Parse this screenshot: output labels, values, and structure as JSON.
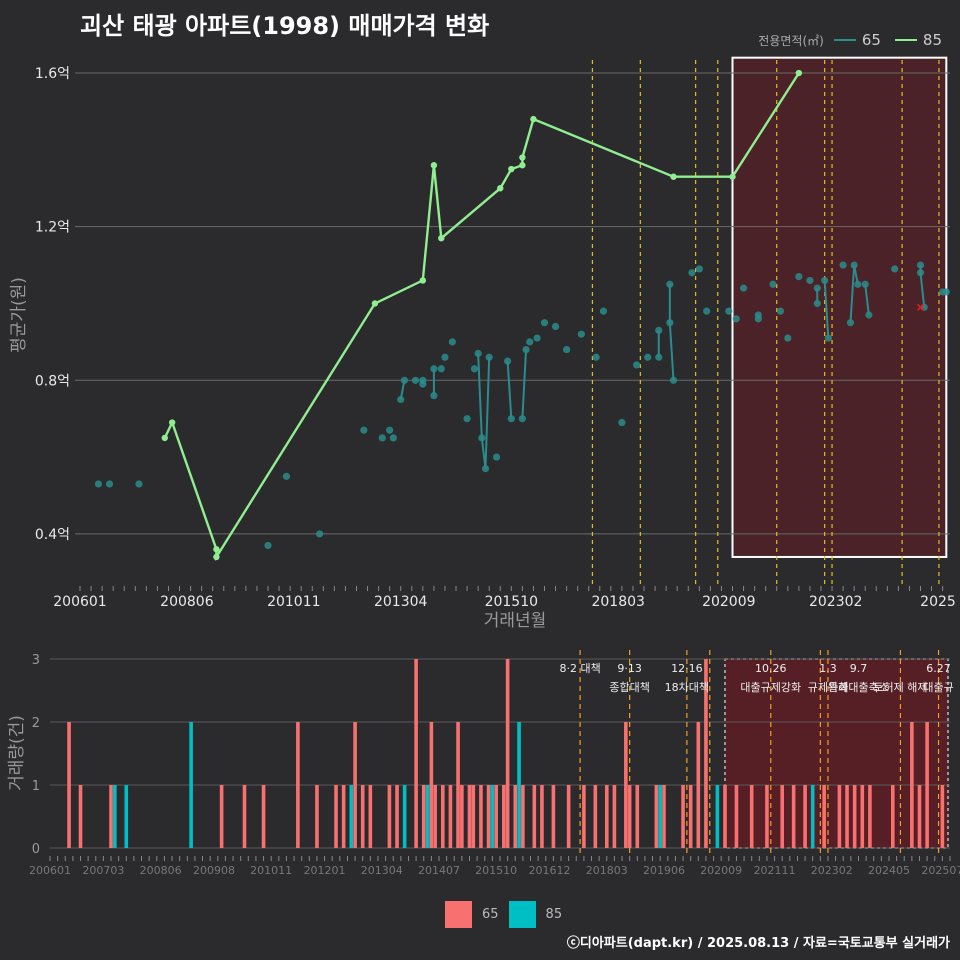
{
  "title": "괴산 태광 아파트(1998) 매매가격 변화",
  "credit": "ⓒ디아파트(dapt.kr) / 2025.08.13 / 자료=국토교통부 실거래가",
  "colors": {
    "line85": "#90ee90",
    "point65": "#2a8c8c",
    "bar65": "#f87070",
    "bar85": "#00bfc4",
    "policy": "#e0c020",
    "policy_bottom": "#f0a020",
    "highlight_fill": "#6a1a22"
  },
  "chart_data": [
    {
      "type": "line",
      "title": "괴산 태광 아파트(1998) 매매가격 변화",
      "xlabel": "거래년월",
      "ylabel": "평균가(원)",
      "ylim": [
        0.28,
        1.66
      ],
      "yticks": [
        {
          "v": 0.4,
          "label": "0.4억"
        },
        {
          "v": 0.8,
          "label": "0.8억"
        },
        {
          "v": 1.2,
          "label": "1.2억"
        },
        {
          "v": 1.6,
          "label": "1.6억"
        }
      ],
      "xticks": [
        "200601",
        "200806",
        "201011",
        "201304",
        "201510",
        "201803",
        "202009",
        "202302",
        "2025"
      ],
      "legend_title": "전용면적(㎡)",
      "series": [
        {
          "name": "85",
          "type": "line",
          "points": [
            [
              "2007-12",
              0.65
            ],
            [
              "2008-02",
              0.69
            ],
            [
              "2009-02",
              0.36
            ],
            [
              "2009-02",
              0.34
            ],
            [
              "2012-09",
              1.0
            ],
            [
              "2013-10",
              1.06
            ],
            [
              "2014-01",
              1.36
            ],
            [
              "2014-03",
              1.17
            ],
            [
              "2015-07",
              1.3
            ],
            [
              "2015-10",
              1.35
            ],
            [
              "2016-01",
              1.36
            ],
            [
              "2016-01",
              1.38
            ],
            [
              "2016-04",
              1.48
            ],
            [
              "2019-06",
              1.33
            ],
            [
              "2020-10",
              1.33
            ],
            [
              "2022-04",
              1.6
            ]
          ]
        },
        {
          "name": "65",
          "type": "scatter",
          "points": [
            [
              "2006-06",
              0.53
            ],
            [
              "2006-09",
              0.53
            ],
            [
              "2007-05",
              0.53
            ],
            [
              "2010-04",
              0.37
            ],
            [
              "2010-09",
              0.55
            ],
            [
              "2011-06",
              0.4
            ],
            [
              "2012-06",
              0.67
            ],
            [
              "2012-11",
              0.65
            ],
            [
              "2013-01",
              0.67
            ],
            [
              "2013-02",
              0.65
            ],
            [
              "2013-04",
              0.75
            ],
            [
              "2013-05",
              0.8
            ],
            [
              "2013-08",
              0.8
            ],
            [
              "2013-10",
              0.8
            ],
            [
              "2013-10",
              0.79
            ],
            [
              "2014-01",
              0.83
            ],
            [
              "2014-01",
              0.76
            ],
            [
              "2014-03",
              0.83
            ],
            [
              "2014-04",
              0.86
            ],
            [
              "2014-06",
              0.9
            ],
            [
              "2014-10",
              0.7
            ],
            [
              "2014-12",
              0.83
            ],
            [
              "2015-01",
              0.87
            ],
            [
              "2015-02",
              0.65
            ],
            [
              "2015-03",
              0.57
            ],
            [
              "2015-04",
              0.86
            ],
            [
              "2015-06",
              0.6
            ],
            [
              "2015-09",
              0.85
            ],
            [
              "2015-10",
              0.7
            ],
            [
              "2016-01",
              0.7
            ],
            [
              "2016-02",
              0.88
            ],
            [
              "2016-03",
              0.9
            ],
            [
              "2016-05",
              0.91
            ],
            [
              "2016-07",
              0.95
            ],
            [
              "2016-10",
              0.94
            ],
            [
              "2017-01",
              0.88
            ],
            [
              "2017-05",
              0.92
            ],
            [
              "2017-09",
              0.86
            ],
            [
              "2017-11",
              0.98
            ],
            [
              "2018-04",
              0.69
            ],
            [
              "2018-08",
              0.84
            ],
            [
              "2018-11",
              0.86
            ],
            [
              "2019-02",
              0.93
            ],
            [
              "2019-02",
              0.86
            ],
            [
              "2019-05",
              1.05
            ],
            [
              "2019-05",
              0.95
            ],
            [
              "2019-06",
              0.8
            ],
            [
              "2019-11",
              1.08
            ],
            [
              "2020-01",
              1.09
            ],
            [
              "2020-03",
              0.98
            ],
            [
              "2020-09",
              0.98
            ],
            [
              "2020-11",
              0.96
            ],
            [
              "2021-01",
              1.04
            ],
            [
              "2021-05",
              0.97
            ],
            [
              "2021-05",
              0.96
            ],
            [
              "2021-09",
              1.05
            ],
            [
              "2021-11",
              0.98
            ],
            [
              "2022-01",
              0.91
            ],
            [
              "2022-04",
              1.07
            ],
            [
              "2022-07",
              1.06
            ],
            [
              "2022-09",
              1.04
            ],
            [
              "2022-09",
              1.0
            ],
            [
              "2022-11",
              1.06
            ],
            [
              "2022-12",
              0.91
            ],
            [
              "2023-04",
              1.1
            ],
            [
              "2023-06",
              0.95
            ],
            [
              "2023-07",
              1.1
            ],
            [
              "2023-08",
              1.05
            ],
            [
              "2023-10",
              1.05
            ],
            [
              "2023-11",
              0.97
            ],
            [
              "2024-06",
              1.09
            ],
            [
              "2025-01",
              1.1
            ],
            [
              "2025-01",
              1.08
            ],
            [
              "2025-02",
              0.99
            ],
            [
              "2025-07",
              1.03
            ],
            [
              "2025-08",
              1.03
            ]
          ]
        }
      ],
      "highlight_box": {
        "x_from": "2020-10",
        "x_to": "2025-08",
        "y_from": 0.34,
        "y_to": 1.64
      },
      "marker_x": {
        "x": "2025-01",
        "y": 0.99
      },
      "policy_dates": [
        "2017-08",
        "2018-09",
        "2019-12",
        "2020-06",
        "2021-10",
        "2022-11",
        "2023-01",
        "2024-08",
        "2025-06"
      ]
    },
    {
      "type": "bar",
      "ylabel": "거래량(건)",
      "ylim": [
        0,
        3
      ],
      "yticks": [
        "0",
        "1",
        "2",
        "3"
      ],
      "xticks": [
        "200601",
        "200703",
        "200806",
        "200908",
        "201011",
        "201201",
        "201304",
        "201407",
        "201510",
        "201612",
        "201803",
        "201906",
        "202009",
        "202111",
        "202302",
        "202405",
        "202507"
      ],
      "legend": [
        {
          "name": "65",
          "color": "#f87070"
        },
        {
          "name": "85",
          "color": "#00bfc4"
        }
      ],
      "annotations": [
        {
          "date": "2017-08",
          "label": "8·2 대책",
          "line2": ""
        },
        {
          "date": "2018-09",
          "label": "9·13",
          "line2": "종합대책"
        },
        {
          "date": "2019-12",
          "label": "12·16",
          "line2": "18차대책"
        },
        {
          "date": "2021-10",
          "label": "10.26",
          "line2": "대출규제강화"
        },
        {
          "date": "2023-01",
          "label": "1.3",
          "line2": "규제완화"
        },
        {
          "date": "2023-09",
          "label": "9.7",
          "line2": "특례대출축소"
        },
        {
          "date": "2024-08",
          "label": "",
          "line2": "토허제 해제"
        },
        {
          "date": "2025-06",
          "label": "6.27",
          "line2": "대출규"
        }
      ],
      "bars": [
        [
          "2006-06",
          2,
          "65"
        ],
        [
          "2006-09",
          1,
          "65"
        ],
        [
          "2007-05",
          1,
          "65"
        ],
        [
          "2007-06",
          1,
          "85"
        ],
        [
          "2007-09",
          1,
          "85"
        ],
        [
          "2009-02",
          2,
          "85"
        ],
        [
          "2009-10",
          1,
          "65"
        ],
        [
          "2010-04",
          1,
          "65"
        ],
        [
          "2010-09",
          1,
          "65"
        ],
        [
          "2011-06",
          2,
          "65"
        ],
        [
          "2011-11",
          1,
          "65"
        ],
        [
          "2012-04",
          1,
          "65"
        ],
        [
          "2012-06",
          1,
          "65"
        ],
        [
          "2012-08",
          1,
          "85"
        ],
        [
          "2012-09",
          2,
          "65"
        ],
        [
          "2012-11",
          1,
          "65"
        ],
        [
          "2013-01",
          1,
          "65"
        ],
        [
          "2013-06",
          1,
          "65"
        ],
        [
          "2013-08",
          1,
          "65"
        ],
        [
          "2013-10",
          1,
          "85"
        ],
        [
          "2014-01",
          3,
          "65"
        ],
        [
          "2014-03",
          1,
          "65"
        ],
        [
          "2014-04",
          1,
          "85"
        ],
        [
          "2014-05",
          2,
          "65"
        ],
        [
          "2014-06",
          1,
          "65"
        ],
        [
          "2014-08",
          1,
          "65"
        ],
        [
          "2014-10",
          1,
          "65"
        ],
        [
          "2014-12",
          2,
          "65"
        ],
        [
          "2015-01",
          1,
          "65"
        ],
        [
          "2015-03",
          1,
          "65"
        ],
        [
          "2015-04",
          1,
          "65"
        ],
        [
          "2015-06",
          1,
          "65"
        ],
        [
          "2015-08",
          1,
          "65"
        ],
        [
          "2015-09",
          1,
          "85"
        ],
        [
          "2015-10",
          1,
          "65"
        ],
        [
          "2015-12",
          1,
          "65"
        ],
        [
          "2016-01",
          3,
          "65"
        ],
        [
          "2016-03",
          1,
          "65"
        ],
        [
          "2016-04",
          2,
          "85"
        ],
        [
          "2016-05",
          1,
          "65"
        ],
        [
          "2016-08",
          1,
          "65"
        ],
        [
          "2016-10",
          1,
          "65"
        ],
        [
          "2017-01",
          1,
          "65"
        ],
        [
          "2017-05",
          1,
          "65"
        ],
        [
          "2017-09",
          1,
          "65"
        ],
        [
          "2017-12",
          1,
          "65"
        ],
        [
          "2018-03",
          1,
          "65"
        ],
        [
          "2018-05",
          1,
          "65"
        ],
        [
          "2018-08",
          2,
          "65"
        ],
        [
          "2018-09",
          1,
          "65"
        ],
        [
          "2018-11",
          1,
          "65"
        ],
        [
          "2019-04",
          1,
          "65"
        ],
        [
          "2019-05",
          1,
          "85"
        ],
        [
          "2019-06",
          1,
          "65"
        ],
        [
          "2019-11",
          1,
          "65"
        ],
        [
          "2020-01",
          1,
          "65"
        ],
        [
          "2020-03",
          2,
          "65"
        ],
        [
          "2020-05",
          3,
          "65"
        ],
        [
          "2020-08",
          1,
          "85"
        ],
        [
          "2020-10",
          1,
          "65"
        ],
        [
          "2021-01",
          1,
          "65"
        ],
        [
          "2021-05",
          1,
          "65"
        ],
        [
          "2021-09",
          1,
          "65"
        ],
        [
          "2022-01",
          1,
          "65"
        ],
        [
          "2022-04",
          1,
          "65"
        ],
        [
          "2022-07",
          1,
          "65"
        ],
        [
          "2022-09",
          1,
          "85"
        ],
        [
          "2022-12",
          1,
          "65"
        ],
        [
          "2023-04",
          1,
          "65"
        ],
        [
          "2023-06",
          1,
          "65"
        ],
        [
          "2023-08",
          1,
          "65"
        ],
        [
          "2023-10",
          1,
          "65"
        ],
        [
          "2023-12",
          1,
          "65"
        ],
        [
          "2024-06",
          1,
          "65"
        ],
        [
          "2024-11",
          2,
          "65"
        ],
        [
          "2025-01",
          1,
          "65"
        ],
        [
          "2025-03",
          2,
          "65"
        ],
        [
          "2025-07",
          1,
          "65"
        ]
      ]
    }
  ]
}
